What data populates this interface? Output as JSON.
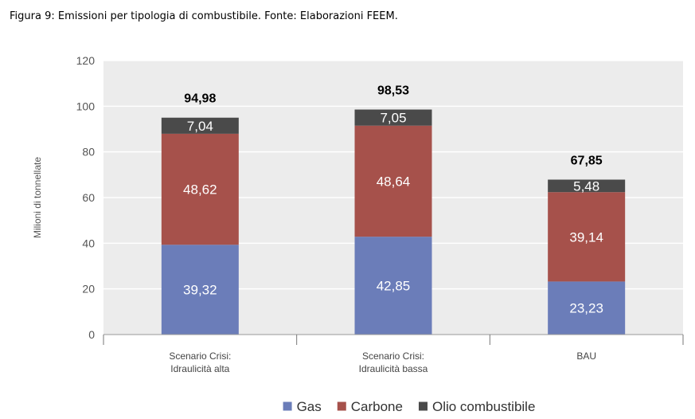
{
  "caption": "Figura 9: Emissioni per tipologia di combustibile. Fonte: Elaborazioni FEEM.",
  "chart_data": {
    "type": "bar",
    "stacked": true,
    "title": "",
    "xlabel": "",
    "ylabel": "Milioni di tonnellate",
    "ylim": [
      0,
      120
    ],
    "yticks": [
      0,
      20,
      40,
      60,
      80,
      100,
      120
    ],
    "grid": true,
    "legend_position": "bottom",
    "categories": [
      [
        "Scenario Crisi:",
        "Idraulicità alta"
      ],
      [
        "Scenario Crisi:",
        "Idraulicità bassa"
      ],
      [
        "BAU"
      ]
    ],
    "series": [
      {
        "name": "Gas",
        "color": "#6b7db9",
        "values": [
          39.32,
          42.85,
          23.23
        ],
        "labels": [
          "39,32",
          "42,85",
          "23,23"
        ]
      },
      {
        "name": "Carbone",
        "color": "#a6514b",
        "values": [
          48.62,
          48.64,
          39.14
        ],
        "labels": [
          "48,62",
          "48,64",
          "39,14"
        ]
      },
      {
        "name": "Olio combustibile",
        "color": "#4a4a4a",
        "values": [
          7.04,
          7.05,
          5.48
        ],
        "labels": [
          "7,04",
          "7,05",
          "5,48"
        ]
      }
    ],
    "totals": [
      94.98,
      98.53,
      67.85
    ],
    "total_labels": [
      "94,98",
      "98,53",
      "67,85"
    ]
  }
}
